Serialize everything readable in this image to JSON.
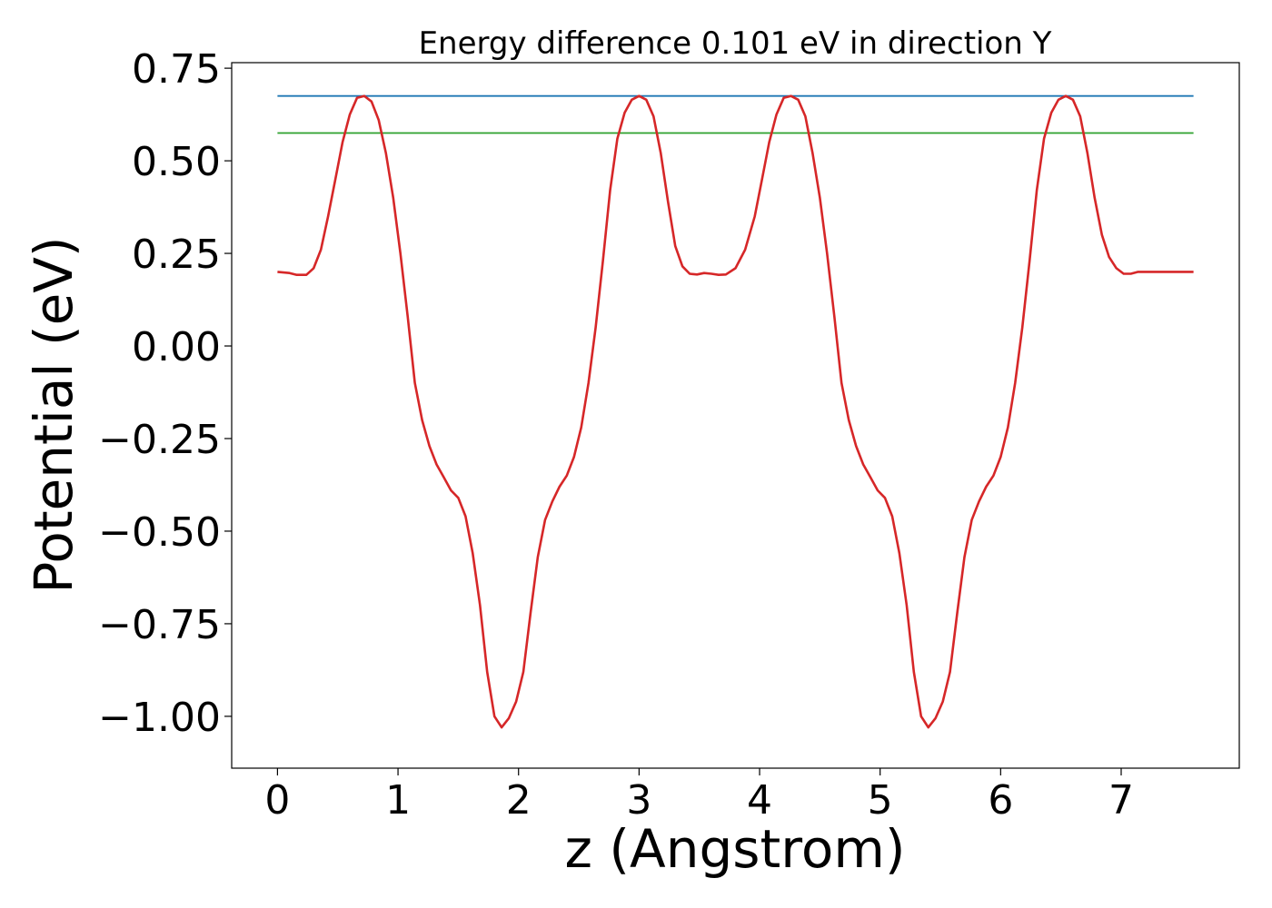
{
  "chart_data": {
    "type": "line",
    "title": "Energy difference 0.101 eV in direction Y",
    "xlabel": "z (Angstrom)",
    "ylabel": "Potential (eV)",
    "xlim": [
      -0.38,
      7.98
    ],
    "ylim": [
      -1.14,
      0.765
    ],
    "xticks": [
      0,
      1,
      2,
      3,
      4,
      5,
      6,
      7
    ],
    "xtick_labels": [
      "0",
      "1",
      "2",
      "3",
      "4",
      "5",
      "6",
      "7"
    ],
    "yticks": [
      0.75,
      0.5,
      0.25,
      0.0,
      -0.25,
      -0.5,
      -0.75,
      -1.0
    ],
    "ytick_labels": [
      "0.75",
      "0.50",
      "0.25",
      "0.00",
      "−0.25",
      "−0.50",
      "−0.75",
      "−1.00"
    ],
    "grid": false,
    "legend": "none",
    "series": [
      {
        "color": "#1f77b4",
        "x": [
          0,
          7.6
        ],
        "y": [
          0.675,
          0.675
        ]
      },
      {
        "color": "#2ca02c",
        "x": [
          0,
          7.6
        ],
        "y": [
          0.575,
          0.575
        ]
      },
      {
        "color": "#d62728",
        "x": [
          0.0,
          0.1,
          0.16,
          0.24,
          0.3,
          0.36,
          0.42,
          0.48,
          0.54,
          0.6,
          0.66,
          0.72,
          0.78,
          0.84,
          0.9,
          0.96,
          1.02,
          1.08,
          1.14,
          1.2,
          1.26,
          1.32,
          1.38,
          1.44,
          1.5,
          1.56,
          1.62,
          1.68,
          1.74,
          1.8,
          1.86,
          1.92,
          1.98,
          2.04,
          2.1,
          2.16,
          2.22,
          2.28,
          2.34,
          2.4,
          2.46,
          2.52,
          2.58,
          2.64,
          2.7,
          2.76,
          2.82,
          2.88,
          2.94,
          3.0,
          3.06,
          3.12,
          3.18,
          3.24,
          3.3,
          3.36,
          3.42,
          3.48,
          3.54,
          3.6,
          3.66,
          3.72,
          3.8,
          3.88,
          3.96,
          4.02,
          4.08,
          4.14,
          4.2,
          4.26,
          4.32,
          4.38,
          4.44,
          4.5,
          4.56,
          4.62,
          4.68,
          4.74,
          4.8,
          4.86,
          4.92,
          4.98,
          5.04,
          5.1,
          5.16,
          5.22,
          5.28,
          5.34,
          5.4,
          5.46,
          5.52,
          5.58,
          5.64,
          5.7,
          5.76,
          5.82,
          5.88,
          5.94,
          6.0,
          6.06,
          6.12,
          6.18,
          6.24,
          6.3,
          6.36,
          6.42,
          6.48,
          6.54,
          6.6,
          6.66,
          6.72,
          6.78,
          6.84,
          6.9,
          6.96,
          7.02,
          7.08,
          7.14,
          7.2,
          7.26,
          7.32,
          7.38,
          7.44,
          7.5,
          7.56,
          7.6
        ],
        "y": [
          0.2,
          0.197,
          0.192,
          0.192,
          0.21,
          0.26,
          0.35,
          0.45,
          0.55,
          0.625,
          0.67,
          0.675,
          0.66,
          0.61,
          0.52,
          0.4,
          0.25,
          0.08,
          -0.1,
          -0.2,
          -0.27,
          -0.32,
          -0.355,
          -0.39,
          -0.41,
          -0.46,
          -0.56,
          -0.7,
          -0.88,
          -1.0,
          -1.03,
          -1.005,
          -0.96,
          -0.88,
          -0.72,
          -0.57,
          -0.47,
          -0.42,
          -0.38,
          -0.35,
          -0.3,
          -0.22,
          -0.1,
          0.05,
          0.23,
          0.42,
          0.56,
          0.63,
          0.665,
          0.675,
          0.665,
          0.62,
          0.52,
          0.39,
          0.27,
          0.215,
          0.195,
          0.193,
          0.197,
          0.195,
          0.192,
          0.193,
          0.21,
          0.26,
          0.35,
          0.45,
          0.55,
          0.625,
          0.67,
          0.675,
          0.665,
          0.62,
          0.52,
          0.4,
          0.25,
          0.08,
          -0.1,
          -0.2,
          -0.27,
          -0.32,
          -0.355,
          -0.39,
          -0.41,
          -0.46,
          -0.56,
          -0.7,
          -0.88,
          -1.0,
          -1.03,
          -1.005,
          -0.96,
          -0.88,
          -0.72,
          -0.57,
          -0.47,
          -0.42,
          -0.38,
          -0.35,
          -0.3,
          -0.22,
          -0.1,
          0.05,
          0.23,
          0.42,
          0.56,
          0.63,
          0.665,
          0.675,
          0.665,
          0.62,
          0.52,
          0.4,
          0.3,
          0.24,
          0.21,
          0.195,
          0.195,
          0.2,
          0.2,
          0.2,
          0.2,
          0.2,
          0.2,
          0.2,
          0.2,
          0.2
        ]
      }
    ]
  }
}
